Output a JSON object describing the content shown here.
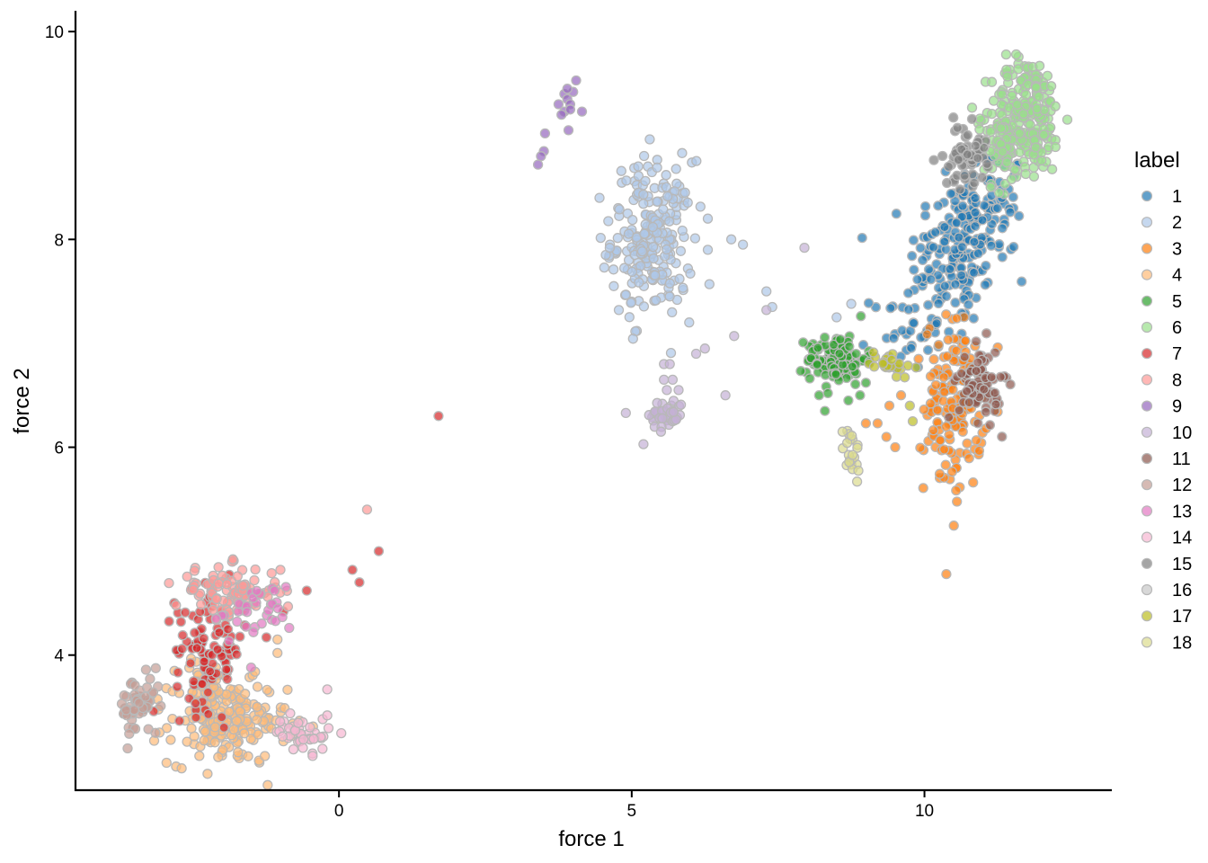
{
  "chart_data": {
    "type": "scatter",
    "xlabel": "force 1",
    "ylabel": "force 2",
    "xlim": [
      -4.5,
      13.2
    ],
    "ylim": [
      2.7,
      10.2
    ],
    "xticks": [
      0,
      5,
      10
    ],
    "yticks": [
      4,
      6,
      8,
      10
    ],
    "x_tick_labels": [
      "0",
      "5",
      "10"
    ],
    "y_tick_labels": [
      "4",
      "6",
      "8",
      "10"
    ],
    "grid": false,
    "legend_title": "label",
    "legend_position": "right",
    "point_style": {
      "opacity": 0.7,
      "stroke": "#b8b8b8"
    },
    "series": [
      {
        "name": "1",
        "color": "#1f77b4",
        "clusters": [
          {
            "cx": 10.55,
            "cy": 7.85,
            "sx": 0.4,
            "sy": 0.35,
            "n": 140
          },
          {
            "cx": 11.1,
            "cy": 8.35,
            "sx": 0.3,
            "sy": 0.3,
            "n": 80
          },
          {
            "cx": 9.7,
            "cy": 7.15,
            "sx": 0.3,
            "sy": 0.2,
            "n": 40
          }
        ]
      },
      {
        "name": "2",
        "color": "#aec7e8",
        "clusters": [
          {
            "cx": 5.35,
            "cy": 8.0,
            "sx": 0.35,
            "sy": 0.38,
            "n": 220
          }
        ],
        "points": [
          [
            6.3,
            8.2
          ],
          [
            6.7,
            8.0
          ],
          [
            6.3,
            7.9
          ],
          [
            6.9,
            7.95
          ],
          [
            7.3,
            7.5
          ],
          [
            7.4,
            7.35
          ],
          [
            8.5,
            7.25
          ],
          [
            8.75,
            7.38
          ],
          [
            4.45,
            8.4
          ]
        ]
      },
      {
        "name": "3",
        "color": "#ff7f0e",
        "clusters": [
          {
            "cx": 10.5,
            "cy": 6.4,
            "sx": 0.25,
            "sy": 0.42,
            "n": 150
          }
        ],
        "points": [
          [
            9.0,
            6.23
          ],
          [
            9.2,
            6.23
          ],
          [
            9.35,
            6.1
          ],
          [
            9.5,
            6.0
          ],
          [
            9.4,
            6.4
          ],
          [
            9.6,
            6.5
          ],
          [
            9.9,
            6.85
          ]
        ]
      },
      {
        "name": "4",
        "color": "#ffbb78",
        "clusters": [
          {
            "cx": -1.9,
            "cy": 3.35,
            "sx": 0.5,
            "sy": 0.2,
            "n": 180
          },
          {
            "cx": -2.3,
            "cy": 3.7,
            "sx": 0.2,
            "sy": 0.15,
            "n": 40
          }
        ],
        "points": [
          [
            -1.05,
            4.02
          ],
          [
            -1.05,
            4.15
          ]
        ]
      },
      {
        "name": "5",
        "color": "#2ca02c",
        "clusters": [
          {
            "cx": 8.5,
            "cy": 6.85,
            "sx": 0.25,
            "sy": 0.12,
            "n": 110
          }
        ],
        "points": [
          [
            8.2,
            6.5
          ],
          [
            8.35,
            6.52
          ],
          [
            8.3,
            6.35
          ],
          [
            8.7,
            6.45
          ],
          [
            8.9,
            6.5
          ],
          [
            9.0,
            6.62
          ]
        ]
      },
      {
        "name": "6",
        "color": "#98df8a",
        "clusters": [
          {
            "cx": 11.75,
            "cy": 9.2,
            "sx": 0.3,
            "sy": 0.28,
            "n": 220
          },
          {
            "cx": 11.3,
            "cy": 8.9,
            "sx": 0.2,
            "sy": 0.2,
            "n": 50
          }
        ]
      },
      {
        "name": "7",
        "color": "#d62728",
        "clusters": [
          {
            "cx": -2.2,
            "cy": 4.05,
            "sx": 0.3,
            "sy": 0.28,
            "n": 100
          }
        ],
        "points": [
          [
            1.7,
            6.3
          ],
          [
            0.23,
            4.82
          ],
          [
            0.35,
            4.7
          ],
          [
            0.68,
            5.0
          ],
          [
            -0.55,
            4.62
          ],
          [
            -0.95,
            4.42
          ],
          [
            -2.7,
            4.32
          ]
        ]
      },
      {
        "name": "8",
        "color": "#ff9896",
        "clusters": [
          {
            "cx": -1.9,
            "cy": 4.62,
            "sx": 0.45,
            "sy": 0.12,
            "n": 90
          }
        ],
        "points": [
          [
            0.48,
            5.4
          ],
          [
            -1.0,
            4.82
          ]
        ]
      },
      {
        "name": "9",
        "color": "#9467bd",
        "points": [
          [
            3.85,
            9.4
          ],
          [
            3.9,
            9.35
          ],
          [
            4.0,
            9.42
          ],
          [
            4.05,
            9.53
          ],
          [
            4.15,
            9.23
          ],
          [
            3.85,
            9.23
          ],
          [
            3.95,
            9.3
          ],
          [
            3.75,
            9.3
          ],
          [
            3.8,
            9.2
          ],
          [
            3.9,
            9.45
          ],
          [
            3.95,
            9.25
          ],
          [
            3.5,
            8.85
          ],
          [
            3.45,
            8.8
          ],
          [
            3.4,
            8.72
          ],
          [
            3.52,
            9.02
          ],
          [
            3.92,
            9.05
          ]
        ]
      },
      {
        "name": "10",
        "color": "#c5b0d5",
        "clusters": [
          {
            "cx": 5.6,
            "cy": 6.32,
            "sx": 0.15,
            "sy": 0.07,
            "n": 40
          }
        ],
        "points": [
          [
            5.55,
            6.8
          ],
          [
            5.65,
            6.8
          ],
          [
            5.55,
            6.65
          ],
          [
            5.7,
            6.65
          ],
          [
            5.8,
            6.55
          ],
          [
            5.6,
            6.55
          ],
          [
            5.5,
            6.15
          ],
          [
            6.1,
            6.9
          ],
          [
            6.25,
            6.95
          ],
          [
            6.6,
            6.5
          ],
          [
            6.75,
            7.07
          ],
          [
            4.9,
            6.33
          ],
          [
            5.2,
            6.03
          ],
          [
            7.95,
            7.92
          ],
          [
            7.3,
            7.32
          ]
        ]
      },
      {
        "name": "11",
        "color": "#8c564b",
        "clusters": [
          {
            "cx": 10.95,
            "cy": 6.62,
            "sx": 0.18,
            "sy": 0.18,
            "n": 80
          }
        ]
      },
      {
        "name": "12",
        "color": "#c49c94",
        "clusters": [
          {
            "cx": -3.4,
            "cy": 3.5,
            "sx": 0.18,
            "sy": 0.15,
            "n": 55
          }
        ]
      },
      {
        "name": "13",
        "color": "#e377c2",
        "clusters": [
          {
            "cx": -1.4,
            "cy": 4.42,
            "sx": 0.3,
            "sy": 0.13,
            "n": 30
          }
        ],
        "points": [
          [
            -1.5,
            3.88
          ],
          [
            -2.0,
            4.38
          ],
          [
            -2.1,
            4.35
          ]
        ]
      },
      {
        "name": "14",
        "color": "#f7b6d2",
        "clusters": [
          {
            "cx": -0.6,
            "cy": 3.25,
            "sx": 0.25,
            "sy": 0.08,
            "n": 40
          }
        ],
        "points": [
          [
            -0.2,
            3.67
          ],
          [
            -0.2,
            3.42
          ],
          [
            -0.45,
            3.03
          ]
        ]
      },
      {
        "name": "15",
        "color": "#7f7f7f",
        "clusters": [
          {
            "cx": 10.7,
            "cy": 8.8,
            "sx": 0.18,
            "sy": 0.15,
            "n": 60
          }
        ]
      },
      {
        "name": "16",
        "color": "#c7c7c7",
        "points": []
      },
      {
        "name": "17",
        "color": "#bcbd22",
        "clusters": [
          {
            "cx": 9.4,
            "cy": 6.82,
            "sx": 0.18,
            "sy": 0.06,
            "n": 25
          }
        ],
        "points": [
          [
            9.75,
            6.4
          ],
          [
            9.8,
            6.25
          ]
        ]
      },
      {
        "name": "18",
        "color": "#dbdb8d",
        "clusters": [
          {
            "cx": 8.75,
            "cy": 5.95,
            "sx": 0.07,
            "sy": 0.12,
            "n": 20
          }
        ],
        "points": [
          [
            8.6,
            6.15
          ],
          [
            8.85,
            5.67
          ]
        ]
      }
    ]
  }
}
